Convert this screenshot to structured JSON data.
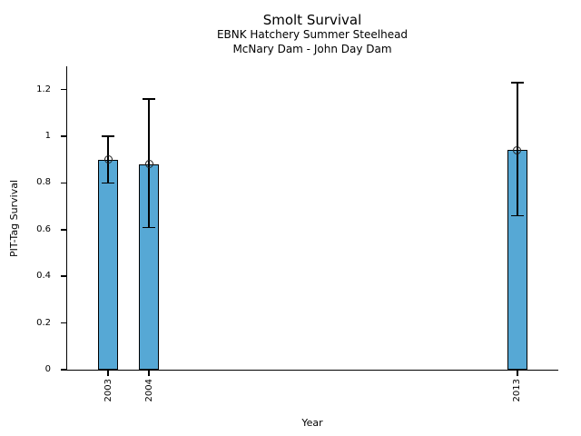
{
  "chart_data": {
    "type": "bar",
    "title": "Smolt Survival",
    "subtitle": [
      "EBNK Hatchery Summer Steelhead",
      "McNary Dam - John Day Dam"
    ],
    "xlabel": "Year",
    "ylabel": "PIT-Tag Survival",
    "x": [
      2003,
      2004,
      2013
    ],
    "xtick_labels": [
      "2003",
      "2004",
      "2013"
    ],
    "values": [
      0.9,
      0.88,
      0.94
    ],
    "error_low": [
      0.8,
      0.61,
      0.66
    ],
    "error_high": [
      1.0,
      1.16,
      1.23
    ],
    "xlim": [
      2002,
      2014
    ],
    "ylim": [
      0,
      1.3
    ],
    "yticks": [
      0,
      0.2,
      0.4,
      0.6,
      0.8,
      1,
      1.2
    ],
    "ytick_labels": [
      "0",
      "0.2",
      "0.4",
      "0.6",
      "0.8",
      "1",
      "1.2"
    ],
    "bar_width_years": 0.5,
    "marker": "open-circle",
    "grid": false,
    "legend": null,
    "colors": {
      "bar_fill": "#56a8d5",
      "bar_edge": "#000000",
      "error_bar": "#000000",
      "marker_edge": "#222222",
      "axis": "#000000",
      "text": "#000000",
      "background": "#ffffff"
    }
  }
}
